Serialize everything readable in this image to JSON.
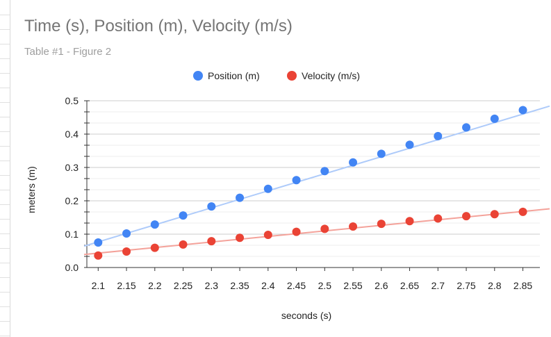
{
  "chart_data": {
    "type": "scatter",
    "title": "Time (s), Position (m), Velocity (m/s)",
    "subtitle": "Table #1 - Figure 2",
    "xlabel": "seconds (s)",
    "ylabel": "meters (m)",
    "xlim": [
      2.08,
      2.88
    ],
    "ylim": [
      0,
      0.5
    ],
    "x_ticks": [
      "2.1",
      "2.15",
      "2.2",
      "2.25",
      "2.3",
      "2.35",
      "2.4",
      "2.45",
      "2.5",
      "2.55",
      "2.6",
      "2.65",
      "2.7",
      "2.75",
      "2.8",
      "2.85"
    ],
    "y_ticks": [
      "0.0",
      "0.1",
      "0.2",
      "0.3",
      "0.4",
      "0.5"
    ],
    "grid": true,
    "legend_position": "top",
    "x": [
      2.1,
      2.15,
      2.2,
      2.25,
      2.3,
      2.35,
      2.4,
      2.45,
      2.5,
      2.55,
      2.6,
      2.65,
      2.7,
      2.75,
      2.8,
      2.85
    ],
    "series": [
      {
        "name": "Position (m)",
        "color": "#4285f4",
        "trendline_color": "#aecbfa",
        "values": [
          0.075,
          0.102,
          0.129,
          0.156,
          0.183,
          0.209,
          0.236,
          0.262,
          0.289,
          0.315,
          0.341,
          0.368,
          0.394,
          0.42,
          0.446,
          0.472
        ],
        "trendline": [
          0.064,
          0.484
        ]
      },
      {
        "name": "Velocity (m/s)",
        "color": "#ea4335",
        "trendline_color": "#f4a29a",
        "values": [
          0.036,
          0.048,
          0.059,
          0.069,
          0.079,
          0.089,
          0.098,
          0.107,
          0.116,
          0.123,
          0.131,
          0.139,
          0.147,
          0.154,
          0.16,
          0.167
        ],
        "trendline": [
          0.039,
          0.176
        ]
      }
    ]
  }
}
